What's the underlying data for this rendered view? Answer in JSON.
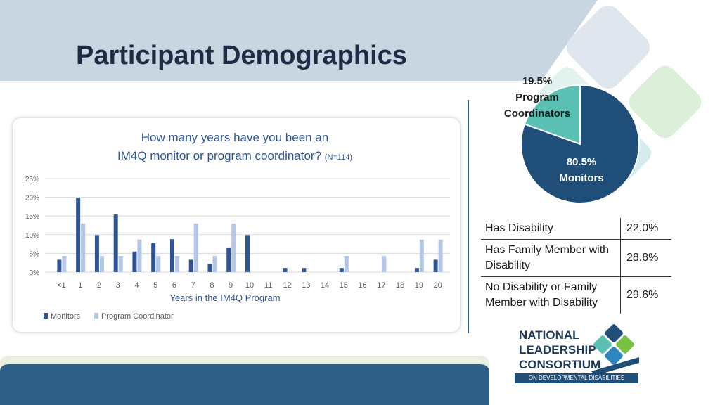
{
  "slide": {
    "title": "Participant Demographics"
  },
  "colors": {
    "monitors": "#2f5597",
    "program_coordinator": "#b4c7e7",
    "pie_monitors": "#1f4e79",
    "pie_coordinators": "#5bc0b4",
    "header_band": "#c7d6e0",
    "footer_band": "#2f5e87"
  },
  "chart_data": [
    {
      "type": "bar",
      "title": "How many years have you been an IM4Q monitor or program coordinator?",
      "subtitle": "(N=114)",
      "xlabel": "Years in the IM4Q Program",
      "ylabel": "",
      "categories": [
        "<1",
        "1",
        "2",
        "3",
        "4",
        "5",
        "6",
        "7",
        "8",
        "9",
        "10",
        "11",
        "12",
        "13",
        "14",
        "15",
        "16",
        "17",
        "18",
        "19",
        "20"
      ],
      "ylim": [
        0,
        25
      ],
      "yticks": [
        "0%",
        "5%",
        "10%",
        "15%",
        "20%",
        "25%"
      ],
      "grid": true,
      "legend_position": "bottom-left",
      "series": [
        {
          "name": "Monitors",
          "values": [
            3.3,
            19.8,
            9.9,
            15.4,
            5.5,
            7.7,
            8.8,
            3.3,
            2.2,
            6.6,
            9.9,
            0,
            1.1,
            1.1,
            0,
            1.1,
            0,
            0,
            0,
            1.1,
            3.3
          ]
        },
        {
          "name": "Program Coordinator",
          "values": [
            4.3,
            13.0,
            4.3,
            4.3,
            8.7,
            4.3,
            4.3,
            13.0,
            4.3,
            13.0,
            0,
            0,
            0,
            0,
            0,
            4.3,
            0,
            4.3,
            0,
            8.7,
            8.7
          ]
        }
      ]
    },
    {
      "type": "pie",
      "slices": [
        {
          "label": "Program Coordinators",
          "percent_text": "19.5%",
          "value": 19.5
        },
        {
          "label": "Monitors",
          "percent_text": "80.5%",
          "value": 80.5
        }
      ]
    },
    {
      "type": "table",
      "rows": [
        {
          "label": "Has Disability",
          "value": "22.0%"
        },
        {
          "label": "Has Family Member with Disability",
          "value": "28.8%"
        },
        {
          "label": "No Disability or Family Member with Disability",
          "value": "29.6%"
        }
      ]
    }
  ],
  "logo": {
    "line1": "NATIONAL",
    "line2": "LEADERSHIP",
    "line3": "CONSORTIUM",
    "tagline": "ON DEVELOPMENTAL DISABILITIES"
  }
}
